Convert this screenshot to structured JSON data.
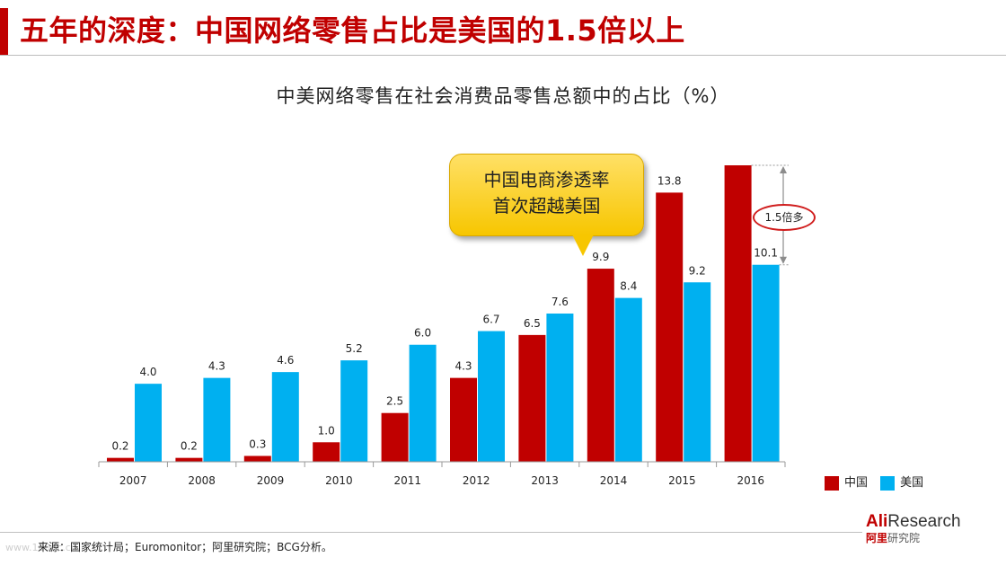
{
  "slide": {
    "title": "五年的深度：中国网络零售占比是美国的1.5倍以上",
    "source": "来源：国家统计局；Euromonitor；阿里研究院；BCG分析。",
    "watermark": "www.100ec.cn"
  },
  "callout": {
    "line1": "中国电商渗透率",
    "line2": "首次超越美国",
    "color": "#f7c600"
  },
  "ratio_note": "1.5倍多",
  "logo": {
    "main_a": "Ali",
    "main_b": "Research",
    "sub_a": "阿里",
    "sub_b": "研究院"
  },
  "chart_data": {
    "type": "bar",
    "title": "中美网络零售在社会消费品零售总额中的占比（%）",
    "categories": [
      "2007",
      "2008",
      "2009",
      "2010",
      "2011",
      "2012",
      "2013",
      "2014",
      "2015",
      "2016"
    ],
    "series": [
      {
        "name": "中国",
        "color": "#c00000",
        "values": [
          0.2,
          0.2,
          0.3,
          1.0,
          2.5,
          4.3,
          6.5,
          9.9,
          13.8,
          15.2
        ],
        "labels": [
          "0.2",
          "0.2",
          "0.3",
          "1.0",
          "2.5",
          "4.3",
          "6.5",
          "9.9",
          "13.8",
          ""
        ]
      },
      {
        "name": "美国",
        "color": "#00b0f0",
        "values": [
          4.0,
          4.3,
          4.6,
          5.2,
          6.0,
          6.7,
          7.6,
          8.4,
          9.2,
          10.1
        ],
        "labels": [
          "4.0",
          "4.3",
          "4.6",
          "5.2",
          "6.0",
          "6.7",
          "7.6",
          "8.4",
          "9.2",
          "10.1"
        ]
      }
    ],
    "ylim": [
      0,
      15.2
    ],
    "grid": false,
    "legend_position": "bottom-right"
  }
}
